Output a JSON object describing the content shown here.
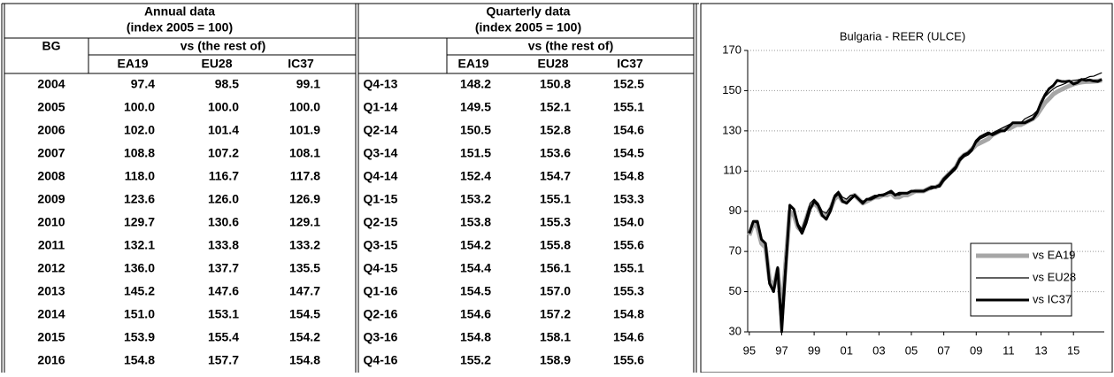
{
  "table": {
    "annual": {
      "title": "Annual data",
      "subtitle": "(index 2005 = 100)",
      "row_header": "BG",
      "group_header": "vs (the rest of)",
      "columns": [
        "EA19",
        "EU28",
        "IC37"
      ],
      "rows": [
        [
          "2004",
          "97.4",
          "98.5",
          "99.1"
        ],
        [
          "2005",
          "100.0",
          "100.0",
          "100.0"
        ],
        [
          "2006",
          "102.0",
          "101.4",
          "101.9"
        ],
        [
          "2007",
          "108.8",
          "107.2",
          "108.1"
        ],
        [
          "2008",
          "118.0",
          "116.7",
          "117.8"
        ],
        [
          "2009",
          "123.6",
          "126.0",
          "126.9"
        ],
        [
          "2010",
          "129.7",
          "130.6",
          "129.1"
        ],
        [
          "2011",
          "132.1",
          "133.8",
          "133.2"
        ],
        [
          "2012",
          "136.0",
          "137.7",
          "135.5"
        ],
        [
          "2013",
          "145.2",
          "147.6",
          "147.7"
        ],
        [
          "2014",
          "151.0",
          "153.1",
          "154.5"
        ],
        [
          "2015",
          "153.9",
          "155.4",
          "154.2"
        ],
        [
          "2016",
          "154.8",
          "157.7",
          "154.8"
        ]
      ]
    },
    "quarterly": {
      "title": "Quarterly data",
      "subtitle": "(index 2005 = 100)",
      "group_header": "vs (the rest of)",
      "columns": [
        "EA19",
        "EU28",
        "IC37"
      ],
      "rows": [
        [
          "Q4-13",
          "148.2",
          "150.8",
          "152.5"
        ],
        [
          "Q1-14",
          "149.5",
          "152.1",
          "155.1"
        ],
        [
          "Q2-14",
          "150.5",
          "152.8",
          "154.6"
        ],
        [
          "Q3-14",
          "151.5",
          "153.6",
          "154.5"
        ],
        [
          "Q4-14",
          "152.4",
          "154.7",
          "154.8"
        ],
        [
          "Q1-15",
          "153.2",
          "155.1",
          "153.3"
        ],
        [
          "Q2-15",
          "153.8",
          "155.3",
          "154.0"
        ],
        [
          "Q3-15",
          "154.2",
          "155.8",
          "155.6"
        ],
        [
          "Q4-15",
          "154.4",
          "156.1",
          "155.1"
        ],
        [
          "Q1-16",
          "154.5",
          "157.0",
          "155.3"
        ],
        [
          "Q2-16",
          "154.6",
          "157.2",
          "154.8"
        ],
        [
          "Q3-16",
          "154.8",
          "158.1",
          "154.6"
        ],
        [
          "Q4-16",
          "155.2",
          "158.9",
          "155.6"
        ]
      ]
    }
  },
  "chart_data": {
    "type": "line",
    "title": "Bulgaria - REER (ULCE)",
    "x": [
      1995,
      1995.25,
      1995.5,
      1995.75,
      1996,
      1996.25,
      1996.5,
      1996.75,
      1997,
      1997.25,
      1997.5,
      1997.75,
      1998,
      1998.25,
      1998.5,
      1998.75,
      1999,
      1999.25,
      1999.5,
      1999.75,
      2000,
      2000.25,
      2000.5,
      2000.75,
      2001,
      2001.25,
      2001.5,
      2001.75,
      2002,
      2002.25,
      2002.5,
      2002.75,
      2003,
      2003.25,
      2003.5,
      2003.75,
      2004,
      2004.25,
      2004.5,
      2004.75,
      2005,
      2005.25,
      2005.5,
      2005.75,
      2006,
      2006.25,
      2006.5,
      2006.75,
      2007,
      2007.25,
      2007.5,
      2007.75,
      2008,
      2008.25,
      2008.5,
      2008.75,
      2009,
      2009.25,
      2009.5,
      2009.75,
      2010,
      2010.25,
      2010.5,
      2010.75,
      2011,
      2011.25,
      2011.5,
      2011.75,
      2012,
      2012.25,
      2012.5,
      2012.75,
      2013,
      2013.25,
      2013.5,
      2013.75,
      2014,
      2014.25,
      2014.5,
      2014.75,
      2015,
      2015.25,
      2015.5,
      2015.75,
      2016,
      2016.25,
      2016.5,
      2016.75
    ],
    "series": [
      {
        "name": "vs EA19",
        "color": "#a6a6a6",
        "values": [
          78,
          84,
          82,
          74,
          72,
          56,
          52,
          61,
          38,
          65,
          90,
          88,
          82,
          80,
          86,
          92,
          94,
          92,
          88,
          88,
          91,
          96,
          98,
          95,
          95,
          97,
          98,
          96,
          94,
          95,
          96,
          97,
          97,
          98,
          98,
          99,
          97,
          97,
          98,
          98,
          99,
          100,
          100,
          100,
          101,
          102,
          102,
          103,
          106,
          108,
          110,
          112,
          116,
          118,
          119,
          121,
          123,
          124,
          125,
          126,
          128,
          129,
          130,
          131,
          131,
          132,
          133,
          133,
          134,
          135,
          136,
          138,
          141,
          144,
          146,
          148.2,
          149.5,
          150.5,
          151.5,
          152.4,
          153.2,
          153.8,
          154.2,
          154.4,
          154.5,
          154.6,
          154.8,
          155.2
        ]
      },
      {
        "name": "vs EU28",
        "color": "#000000",
        "values": [
          80,
          85,
          84,
          76,
          74,
          55,
          51,
          62,
          40,
          68,
          92,
          91,
          84,
          81,
          87,
          94,
          96,
          94,
          90,
          89,
          92,
          98,
          100,
          97,
          96,
          98,
          98,
          96,
          95,
          96,
          97,
          98,
          98,
          98,
          99,
          99,
          98,
          98,
          99,
          99,
          100,
          100,
          100,
          100,
          101,
          101,
          102,
          102,
          105,
          107,
          109,
          111,
          115,
          117,
          118,
          120,
          124,
          126,
          127,
          128,
          129,
          130,
          131,
          132,
          133,
          134,
          134,
          134,
          136,
          137,
          138,
          140,
          143,
          147,
          149,
          150.8,
          152.1,
          152.8,
          153.6,
          154.7,
          155.1,
          155.3,
          155.8,
          156.1,
          157.0,
          157.2,
          158.1,
          158.9
        ]
      },
      {
        "name": "vs IC37",
        "color": "#000000",
        "values": [
          79,
          85,
          85,
          76,
          74,
          54,
          50,
          62,
          30,
          62,
          93,
          91,
          83,
          79,
          84,
          91,
          95,
          93,
          88,
          86,
          90,
          97,
          99,
          95,
          94,
          96,
          98,
          96,
          94,
          96,
          96,
          97,
          98,
          98,
          99,
          100,
          98,
          99,
          99,
          99,
          100,
          100,
          100,
          100,
          101,
          102,
          102,
          103,
          106,
          108,
          110,
          112,
          116,
          118,
          119,
          121,
          125,
          127,
          128,
          129,
          128,
          129,
          130,
          130,
          132,
          134,
          134,
          134,
          134,
          135,
          136,
          139,
          144,
          148,
          151,
          152.5,
          155.1,
          154.6,
          154.5,
          154.8,
          153.3,
          154.0,
          155.6,
          155.1,
          155.3,
          154.8,
          154.6,
          155.6
        ]
      }
    ],
    "xlim": [
      1994.9,
      2016.9
    ],
    "xticks": [
      {
        "value": 1995,
        "label": "95"
      },
      {
        "value": 1997,
        "label": "97"
      },
      {
        "value": 1999,
        "label": "99"
      },
      {
        "value": 2001,
        "label": "01"
      },
      {
        "value": 2003,
        "label": "03"
      },
      {
        "value": 2005,
        "label": "05"
      },
      {
        "value": 2007,
        "label": "07"
      },
      {
        "value": 2009,
        "label": "09"
      },
      {
        "value": 2011,
        "label": "11"
      },
      {
        "value": 2013,
        "label": "13"
      },
      {
        "value": 2015,
        "label": "15"
      }
    ],
    "ylim": [
      30,
      170
    ],
    "yticks": [
      30,
      50,
      70,
      90,
      110,
      130,
      150,
      170
    ],
    "grid": true,
    "legend": "lower right"
  }
}
